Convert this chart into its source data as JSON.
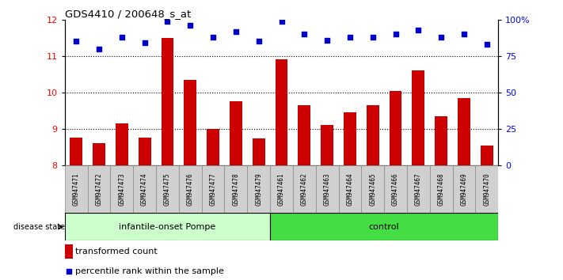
{
  "title": "GDS4410 / 200648_s_at",
  "samples": [
    "GSM947471",
    "GSM947472",
    "GSM947473",
    "GSM947474",
    "GSM947475",
    "GSM947476",
    "GSM947477",
    "GSM947478",
    "GSM947479",
    "GSM947461",
    "GSM947462",
    "GSM947463",
    "GSM947464",
    "GSM947465",
    "GSM947466",
    "GSM947467",
    "GSM947468",
    "GSM947469",
    "GSM947470"
  ],
  "bar_values": [
    8.75,
    8.6,
    9.15,
    8.75,
    11.5,
    10.35,
    9.0,
    9.75,
    8.73,
    10.9,
    9.65,
    9.1,
    9.45,
    9.65,
    10.05,
    10.6,
    9.35,
    9.85,
    8.55
  ],
  "dot_values": [
    85,
    80,
    88,
    84,
    99,
    96,
    88,
    92,
    85,
    99,
    90,
    86,
    88,
    88,
    90,
    93,
    88,
    90,
    83
  ],
  "group1_label": "infantile-onset Pompe",
  "group2_label": "control",
  "group1_count": 9,
  "group2_count": 10,
  "ylim_left": [
    8,
    12
  ],
  "ylim_right": [
    0,
    100
  ],
  "yticks_left": [
    8,
    9,
    10,
    11,
    12
  ],
  "yticks_right": [
    0,
    25,
    50,
    75,
    100
  ],
  "ytick_labels_right": [
    "0",
    "25",
    "50",
    "75",
    "100%"
  ],
  "bar_color": "#cc0000",
  "dot_color": "#0000cc",
  "group1_bg": "#ccffcc",
  "group2_bg": "#44dd44",
  "label_bg": "#d0d0d0",
  "legend_bar_label": "transformed count",
  "legend_dot_label": "percentile rank within the sample",
  "disease_state_label": "disease state"
}
